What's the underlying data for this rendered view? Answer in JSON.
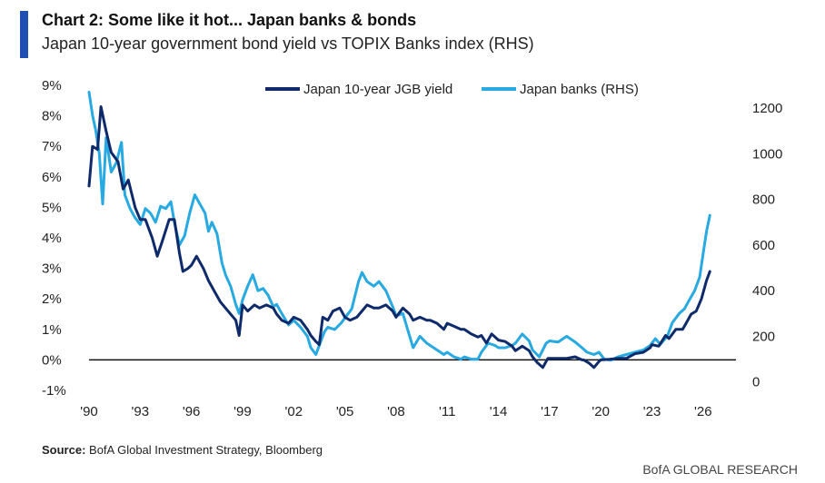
{
  "header": {
    "title": "Chart 2: Some like it hot... Japan banks & bonds",
    "subtitle": "Japan 10-year government bond yield vs TOPIX Banks index (RHS)"
  },
  "footer": {
    "source_label": "Source:",
    "source_text": " BofA Global Investment Strategy, Bloomberg",
    "brand": "BofA GLOBAL RESEARCH"
  },
  "colors": {
    "accent": "#1f4fb3",
    "jgb": "#0e2a6b",
    "banks": "#27a9e1",
    "zero_line": "#111111"
  },
  "chart_data": {
    "type": "line",
    "title": "Chart 2: Some like it hot... Japan banks & bonds",
    "subtitle": "Japan 10-year government bond yield vs TOPIX Banks index (RHS)",
    "xlabel": "",
    "ylabel": "",
    "x_ticks": [
      "'90",
      "'93",
      "'96",
      "'99",
      "'02",
      "'05",
      "'08",
      "'11",
      "'14",
      "'17",
      "'20",
      "'23",
      "'26"
    ],
    "x_range": [
      1990,
      2027.5
    ],
    "y_left": {
      "range": [
        -1,
        9
      ],
      "ticks": [
        "9%",
        "8%",
        "7%",
        "6%",
        "5%",
        "4%",
        "3%",
        "2%",
        "1%",
        "0%",
        "-1%"
      ]
    },
    "y_right": {
      "range": [
        -37,
        1300
      ],
      "ticks": [
        "1200",
        "1000",
        "800",
        "600",
        "400",
        "200",
        "0"
      ]
    },
    "grid": false,
    "legend_position": "top",
    "series": [
      {
        "name": "Japan 10-year JGB yield",
        "axis": "left",
        "points": [
          [
            1990.0,
            5.7
          ],
          [
            1990.2,
            7.0
          ],
          [
            1990.5,
            6.9
          ],
          [
            1990.7,
            8.3
          ],
          [
            1991.0,
            7.5
          ],
          [
            1991.3,
            6.8
          ],
          [
            1991.7,
            6.5
          ],
          [
            1992.0,
            5.6
          ],
          [
            1992.3,
            5.9
          ],
          [
            1992.7,
            5.0
          ],
          [
            1993.0,
            4.6
          ],
          [
            1993.3,
            4.6
          ],
          [
            1993.7,
            4.0
          ],
          [
            1994.0,
            3.4
          ],
          [
            1994.3,
            3.9
          ],
          [
            1994.7,
            4.6
          ],
          [
            1995.0,
            4.6
          ],
          [
            1995.3,
            3.5
          ],
          [
            1995.5,
            2.9
          ],
          [
            1995.8,
            3.0
          ],
          [
            1996.0,
            3.1
          ],
          [
            1996.3,
            3.4
          ],
          [
            1996.7,
            3.0
          ],
          [
            1997.0,
            2.6
          ],
          [
            1997.3,
            2.3
          ],
          [
            1997.7,
            1.9
          ],
          [
            1998.0,
            1.7
          ],
          [
            1998.3,
            1.5
          ],
          [
            1998.6,
            1.3
          ],
          [
            1998.8,
            0.8
          ],
          [
            1999.0,
            1.8
          ],
          [
            1999.3,
            1.6
          ],
          [
            1999.7,
            1.8
          ],
          [
            2000.0,
            1.7
          ],
          [
            2000.4,
            1.8
          ],
          [
            2000.8,
            1.7
          ],
          [
            2001.0,
            1.5
          ],
          [
            2001.3,
            1.3
          ],
          [
            2001.7,
            1.2
          ],
          [
            2002.0,
            1.4
          ],
          [
            2002.4,
            1.3
          ],
          [
            2002.8,
            1.0
          ],
          [
            2003.0,
            0.8
          ],
          [
            2003.3,
            0.6
          ],
          [
            2003.5,
            0.5
          ],
          [
            2003.7,
            1.4
          ],
          [
            2004.0,
            1.3
          ],
          [
            2004.3,
            1.6
          ],
          [
            2004.7,
            1.7
          ],
          [
            2005.0,
            1.4
          ],
          [
            2005.3,
            1.3
          ],
          [
            2005.7,
            1.4
          ],
          [
            2006.0,
            1.6
          ],
          [
            2006.3,
            1.8
          ],
          [
            2006.7,
            1.7
          ],
          [
            2007.0,
            1.7
          ],
          [
            2007.4,
            1.8
          ],
          [
            2007.8,
            1.6
          ],
          [
            2008.0,
            1.4
          ],
          [
            2008.4,
            1.7
          ],
          [
            2008.8,
            1.5
          ],
          [
            2009.0,
            1.3
          ],
          [
            2009.4,
            1.4
          ],
          [
            2009.8,
            1.3
          ],
          [
            2010.0,
            1.3
          ],
          [
            2010.4,
            1.2
          ],
          [
            2010.8,
            1.0
          ],
          [
            2011.0,
            1.2
          ],
          [
            2011.4,
            1.1
          ],
          [
            2011.8,
            1.0
          ],
          [
            2012.0,
            1.0
          ],
          [
            2012.4,
            0.85
          ],
          [
            2012.8,
            0.75
          ],
          [
            2013.0,
            0.8
          ],
          [
            2013.3,
            0.55
          ],
          [
            2013.6,
            0.85
          ],
          [
            2014.0,
            0.65
          ],
          [
            2014.4,
            0.6
          ],
          [
            2014.8,
            0.45
          ],
          [
            2015.0,
            0.3
          ],
          [
            2015.4,
            0.45
          ],
          [
            2015.8,
            0.3
          ],
          [
            2016.0,
            0.1
          ],
          [
            2016.3,
            -0.1
          ],
          [
            2016.6,
            -0.25
          ],
          [
            2016.9,
            0.05
          ],
          [
            2017.0,
            0.05
          ],
          [
            2017.5,
            0.05
          ],
          [
            2018.0,
            0.05
          ],
          [
            2018.5,
            0.1
          ],
          [
            2018.9,
            0.0
          ],
          [
            2019.0,
            0.0
          ],
          [
            2019.3,
            -0.1
          ],
          [
            2019.6,
            -0.25
          ],
          [
            2019.9,
            -0.05
          ],
          [
            2020.0,
            0.0
          ],
          [
            2020.5,
            0.02
          ],
          [
            2021.0,
            0.05
          ],
          [
            2021.5,
            0.05
          ],
          [
            2022.0,
            0.2
          ],
          [
            2022.5,
            0.25
          ],
          [
            2022.9,
            0.4
          ],
          [
            2023.0,
            0.5
          ],
          [
            2023.4,
            0.45
          ],
          [
            2023.8,
            0.8
          ],
          [
            2024.0,
            0.7
          ],
          [
            2024.4,
            1.0
          ],
          [
            2024.8,
            1.0
          ],
          [
            2025.0,
            1.2
          ],
          [
            2025.3,
            1.5
          ],
          [
            2025.6,
            1.6
          ],
          [
            2025.9,
            2.0
          ],
          [
            2026.2,
            2.6
          ],
          [
            2026.4,
            2.9
          ]
        ]
      },
      {
        "name": "Japan banks (RHS)",
        "axis": "right",
        "points": [
          [
            1990.0,
            1270
          ],
          [
            1990.2,
            1170
          ],
          [
            1990.4,
            1100
          ],
          [
            1990.6,
            1000
          ],
          [
            1990.8,
            780
          ],
          [
            1991.0,
            1070
          ],
          [
            1991.3,
            920
          ],
          [
            1991.6,
            960
          ],
          [
            1991.9,
            1050
          ],
          [
            1992.1,
            820
          ],
          [
            1992.4,
            760
          ],
          [
            1992.7,
            720
          ],
          [
            1993.0,
            690
          ],
          [
            1993.3,
            760
          ],
          [
            1993.6,
            740
          ],
          [
            1993.9,
            700
          ],
          [
            1994.2,
            770
          ],
          [
            1994.5,
            760
          ],
          [
            1994.8,
            790
          ],
          [
            1995.0,
            700
          ],
          [
            1995.3,
            600
          ],
          [
            1995.6,
            640
          ],
          [
            1995.9,
            740
          ],
          [
            1996.2,
            820
          ],
          [
            1996.5,
            780
          ],
          [
            1996.8,
            740
          ],
          [
            1997.0,
            660
          ],
          [
            1997.2,
            700
          ],
          [
            1997.5,
            650
          ],
          [
            1997.8,
            520
          ],
          [
            1998.0,
            470
          ],
          [
            1998.3,
            420
          ],
          [
            1998.6,
            340
          ],
          [
            1998.8,
            300
          ],
          [
            1999.0,
            360
          ],
          [
            1999.3,
            420
          ],
          [
            1999.6,
            470
          ],
          [
            1999.9,
            400
          ],
          [
            2000.2,
            410
          ],
          [
            2000.5,
            380
          ],
          [
            2000.8,
            330
          ],
          [
            2001.0,
            340
          ],
          [
            2001.3,
            300
          ],
          [
            2001.7,
            250
          ],
          [
            2002.0,
            270
          ],
          [
            2002.4,
            240
          ],
          [
            2002.8,
            200
          ],
          [
            2003.0,
            150
          ],
          [
            2003.3,
            120
          ],
          [
            2003.5,
            160
          ],
          [
            2003.8,
            220
          ],
          [
            2004.0,
            240
          ],
          [
            2004.4,
            230
          ],
          [
            2004.8,
            260
          ],
          [
            2005.0,
            280
          ],
          [
            2005.4,
            320
          ],
          [
            2005.8,
            440
          ],
          [
            2006.0,
            480
          ],
          [
            2006.3,
            440
          ],
          [
            2006.7,
            420
          ],
          [
            2007.0,
            440
          ],
          [
            2007.4,
            400
          ],
          [
            2007.8,
            330
          ],
          [
            2008.0,
            290
          ],
          [
            2008.4,
            300
          ],
          [
            2008.8,
            200
          ],
          [
            2009.0,
            150
          ],
          [
            2009.4,
            200
          ],
          [
            2009.8,
            170
          ],
          [
            2010.0,
            160
          ],
          [
            2010.4,
            140
          ],
          [
            2010.8,
            120
          ],
          [
            2011.0,
            130
          ],
          [
            2011.4,
            110
          ],
          [
            2011.8,
            100
          ],
          [
            2012.0,
            110
          ],
          [
            2012.4,
            100
          ],
          [
            2012.8,
            100
          ],
          [
            2013.0,
            130
          ],
          [
            2013.4,
            170
          ],
          [
            2013.8,
            160
          ],
          [
            2014.0,
            150
          ],
          [
            2014.4,
            150
          ],
          [
            2014.8,
            160
          ],
          [
            2015.0,
            170
          ],
          [
            2015.4,
            210
          ],
          [
            2015.8,
            180
          ],
          [
            2016.0,
            140
          ],
          [
            2016.4,
            110
          ],
          [
            2016.8,
            170
          ],
          [
            2017.0,
            180
          ],
          [
            2017.5,
            175
          ],
          [
            2018.0,
            200
          ],
          [
            2018.5,
            175
          ],
          [
            2018.9,
            150
          ],
          [
            2019.2,
            130
          ],
          [
            2019.6,
            120
          ],
          [
            2019.9,
            130
          ],
          [
            2020.2,
            100
          ],
          [
            2020.6,
            95
          ],
          [
            2021.0,
            110
          ],
          [
            2021.5,
            120
          ],
          [
            2022.0,
            130
          ],
          [
            2022.5,
            140
          ],
          [
            2022.9,
            160
          ],
          [
            2023.2,
            190
          ],
          [
            2023.5,
            165
          ],
          [
            2023.9,
            200
          ],
          [
            2024.2,
            260
          ],
          [
            2024.6,
            300
          ],
          [
            2024.9,
            320
          ],
          [
            2025.2,
            360
          ],
          [
            2025.5,
            400
          ],
          [
            2025.8,
            460
          ],
          [
            2026.0,
            560
          ],
          [
            2026.2,
            660
          ],
          [
            2026.4,
            730
          ]
        ]
      }
    ]
  }
}
